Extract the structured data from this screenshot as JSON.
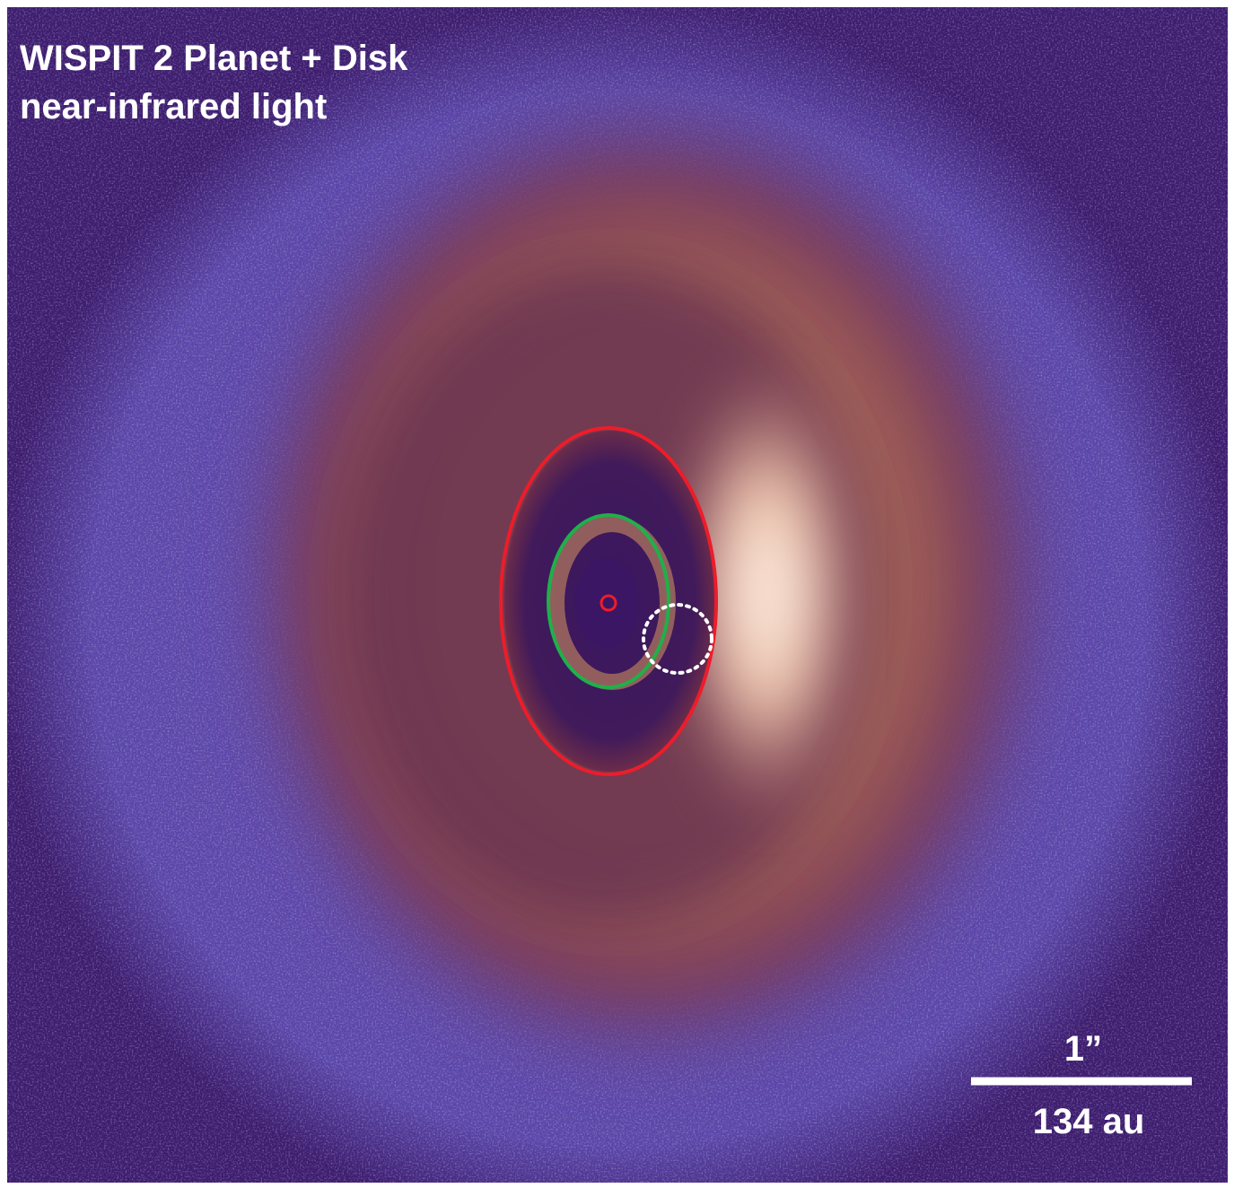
{
  "title": {
    "line1": "WISPIT 2 Planet + Disk",
    "line2": "near-infrared light"
  },
  "scale_bar": {
    "angular": "1”",
    "physical": "134 au"
  }
}
